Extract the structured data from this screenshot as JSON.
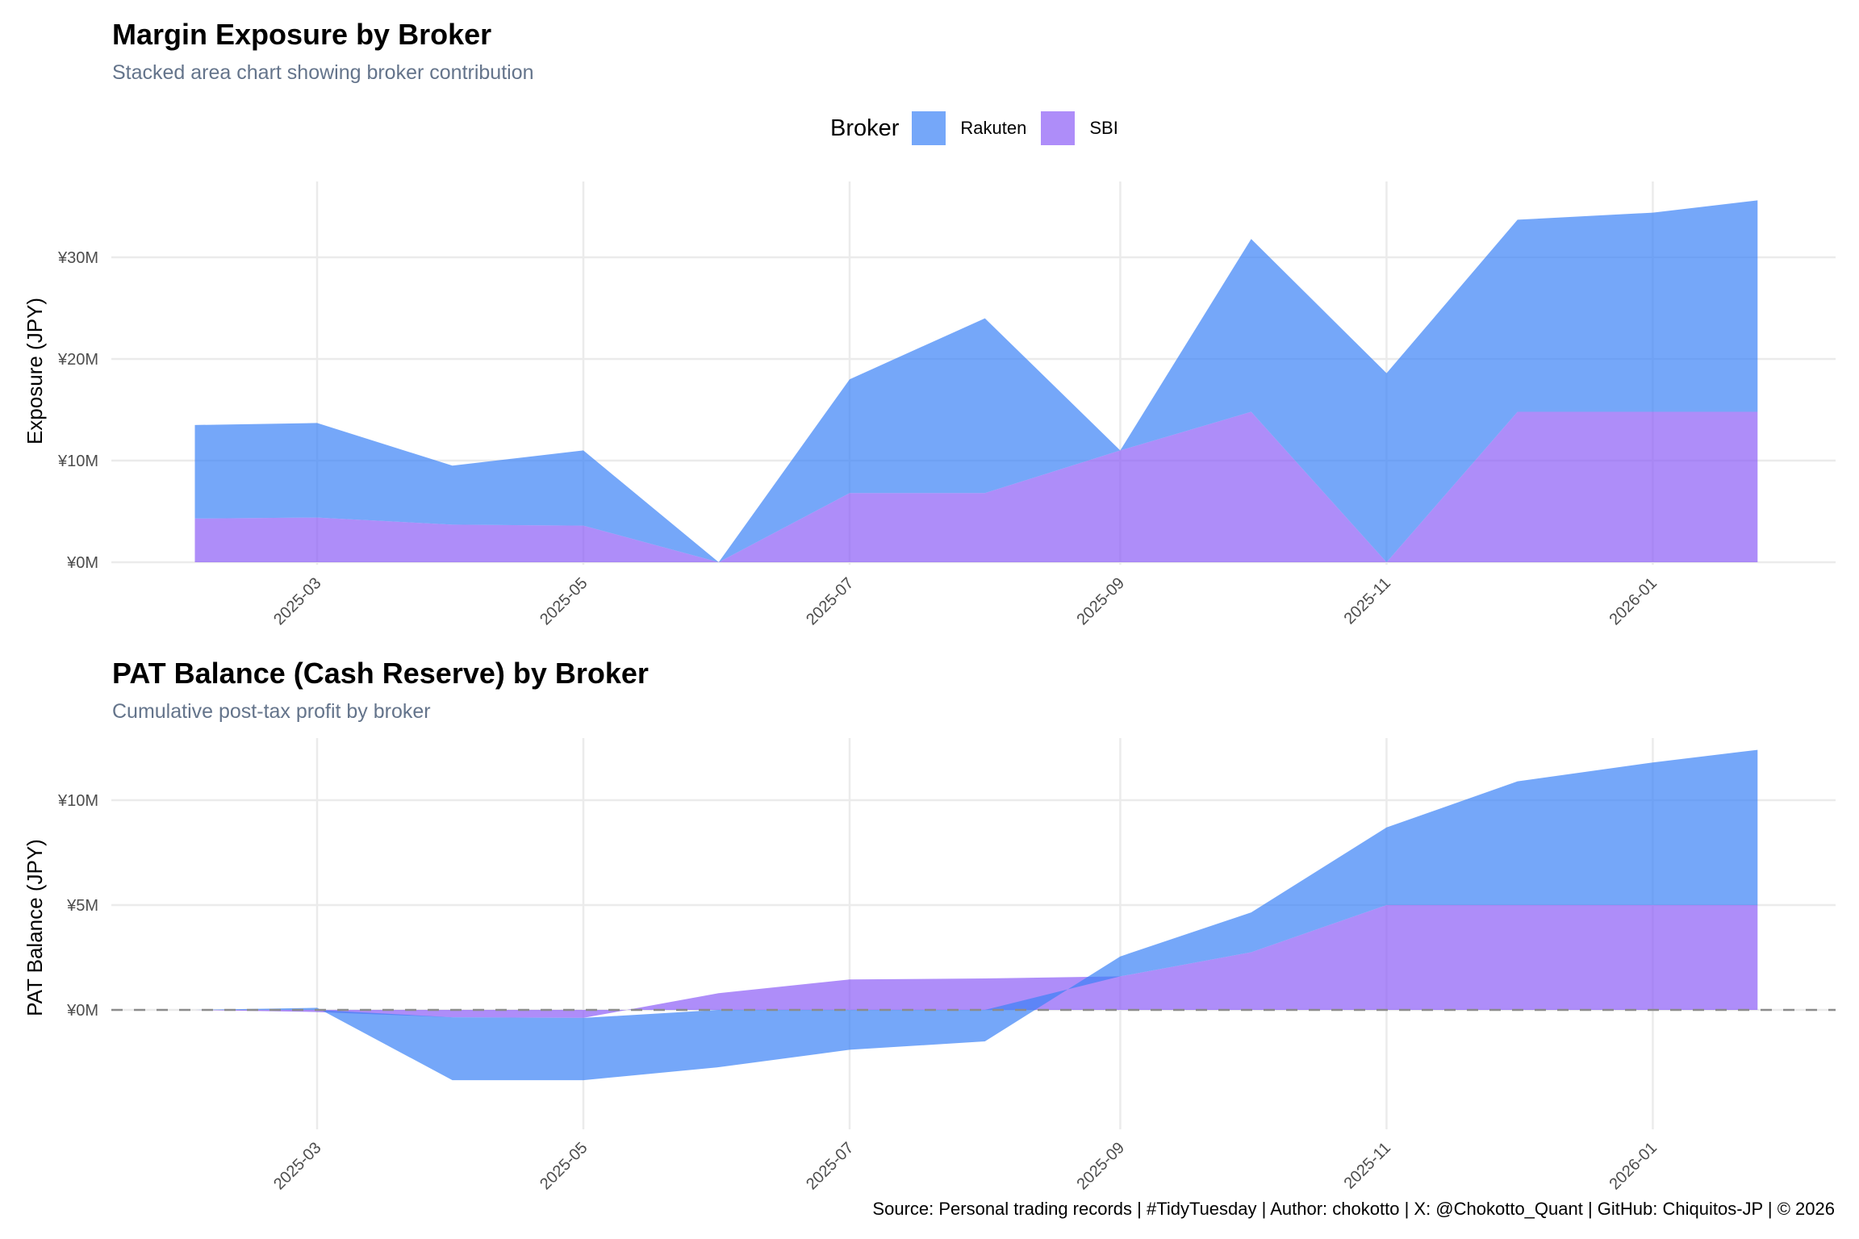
{
  "legend": {
    "title": "Broker",
    "items": [
      {
        "label": "Rakuten",
        "color": "#3b82f6"
      },
      {
        "label": "SBI",
        "color": "#8b5cf6"
      }
    ]
  },
  "caption": "Source: Personal trading records | #TidyTuesday | Author: chokotto | X: @Chokotto_Quant | GitHub: Chiquitos-JP | © 2026",
  "chart_data": [
    {
      "type": "area",
      "stacked": true,
      "title": "Margin Exposure by Broker",
      "subtitle": "Stacked area chart showing broker contribution",
      "xlabel": "",
      "ylabel": "Exposure (JPY)",
      "x": [
        "2025-02-01",
        "2025-03-01",
        "2025-04-01",
        "2025-05-01",
        "2025-06-01",
        "2025-07-01",
        "2025-08-01",
        "2025-09-01",
        "2025-10-01",
        "2025-11-01",
        "2025-12-01",
        "2026-01-01",
        "2026-01-25"
      ],
      "x_ticks": [
        "2025-03",
        "2025-05",
        "2025-07",
        "2025-09",
        "2025-11",
        "2026-01"
      ],
      "y_ticks": [
        "¥0M",
        "¥10M",
        "¥20M",
        "¥30M"
      ],
      "y_tick_values": [
        0,
        10,
        20,
        30
      ],
      "y_unit": "million JPY",
      "ylim": [
        0,
        37
      ],
      "grid": true,
      "legend_position": "top",
      "series": [
        {
          "name": "SBI",
          "values": [
            4.3,
            4.4,
            3.7,
            3.6,
            0,
            6.8,
            6.8,
            11.0,
            14.8,
            0,
            14.8,
            14.8,
            14.8
          ]
        },
        {
          "name": "Rakuten",
          "values": [
            9.2,
            9.3,
            5.8,
            7.4,
            0,
            11.2,
            17.2,
            0,
            17.0,
            18.6,
            18.9,
            19.6,
            20.8
          ]
        }
      ]
    },
    {
      "type": "area",
      "stacked": true,
      "title": "PAT Balance (Cash Reserve) by Broker",
      "subtitle": "Cumulative post-tax profit by broker",
      "xlabel": "",
      "ylabel": "PAT Balance (JPY)",
      "x": [
        "2025-02-01",
        "2025-03-01",
        "2025-04-01",
        "2025-05-01",
        "2025-06-01",
        "2025-07-01",
        "2025-08-01",
        "2025-09-01",
        "2025-10-01",
        "2025-11-01",
        "2025-12-01",
        "2026-01-01",
        "2026-01-25"
      ],
      "x_ticks": [
        "2025-03",
        "2025-05",
        "2025-07",
        "2025-09",
        "2025-11",
        "2026-01"
      ],
      "y_ticks": [
        "¥0M",
        "¥5M",
        "¥10M"
      ],
      "y_tick_values": [
        0,
        5,
        10
      ],
      "y_unit": "million JPY",
      "ylim": [
        -4.5,
        13
      ],
      "grid": true,
      "reference_line": {
        "y": 0,
        "style": "dashed"
      },
      "series": [
        {
          "name": "SBI",
          "values": [
            0,
            -0.1,
            -0.35,
            -0.38,
            0.8,
            1.45,
            1.5,
            1.6,
            2.75,
            5.0,
            5.0,
            5.0,
            5.0
          ]
        },
        {
          "name": "Rakuten",
          "values": [
            0,
            0.1,
            -3.0,
            -2.97,
            -2.73,
            -1.9,
            -1.5,
            0.95,
            1.9,
            3.7,
            5.9,
            6.8,
            7.4
          ]
        }
      ]
    }
  ]
}
